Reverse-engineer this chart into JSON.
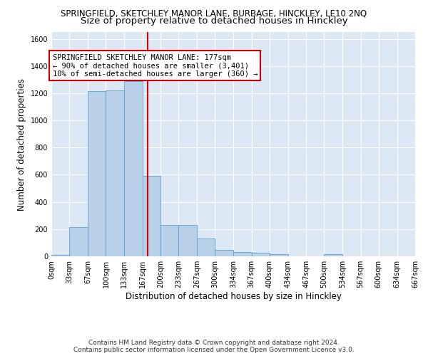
{
  "title": "SPRINGFIELD, SKETCHLEY MANOR LANE, BURBAGE, HINCKLEY, LE10 2NQ",
  "subtitle": "Size of property relative to detached houses in Hinckley",
  "xlabel": "Distribution of detached houses by size in Hinckley",
  "ylabel": "Number of detached properties",
  "footer_line1": "Contains HM Land Registry data © Crown copyright and database right 2024.",
  "footer_line2": "Contains public sector information licensed under the Open Government Licence v3.0.",
  "bar_color": "#b8d0e8",
  "bar_edge_color": "#5a9fd4",
  "background_color": "#dde8f5",
  "grid_color": "#ffffff",
  "fig_background": "#ffffff",
  "vline_color": "#cc0000",
  "vline_x": 177,
  "annotation_text": "SPRINGFIELD SKETCHLEY MANOR LANE: 177sqm\n← 90% of detached houses are smaller (3,401)\n10% of semi-detached houses are larger (360) →",
  "annotation_box_color": "#ffffff",
  "annotation_border_color": "#cc0000",
  "bin_edges": [
    0,
    33,
    67,
    100,
    133,
    167,
    200,
    233,
    267,
    300,
    334,
    367,
    400,
    434,
    467,
    500,
    534,
    567,
    600,
    634,
    667
  ],
  "bin_counts": [
    10,
    215,
    1215,
    1220,
    1290,
    590,
    228,
    228,
    130,
    45,
    30,
    25,
    15,
    0,
    0,
    15,
    0,
    0,
    0,
    0
  ],
  "ylim": [
    0,
    1650
  ],
  "yticks": [
    0,
    200,
    400,
    600,
    800,
    1000,
    1200,
    1400,
    1600
  ],
  "tick_labels": [
    "0sqm",
    "33sqm",
    "67sqm",
    "100sqm",
    "133sqm",
    "167sqm",
    "200sqm",
    "233sqm",
    "267sqm",
    "300sqm",
    "334sqm",
    "367sqm",
    "400sqm",
    "434sqm",
    "467sqm",
    "500sqm",
    "534sqm",
    "567sqm",
    "600sqm",
    "634sqm",
    "667sqm"
  ],
  "title_fontsize": 8.5,
  "subtitle_fontsize": 9.5,
  "axis_label_fontsize": 8.5,
  "ylabel_fontsize": 8.5,
  "tick_fontsize": 7,
  "annotation_fontsize": 7.5,
  "footer_fontsize": 6.5
}
